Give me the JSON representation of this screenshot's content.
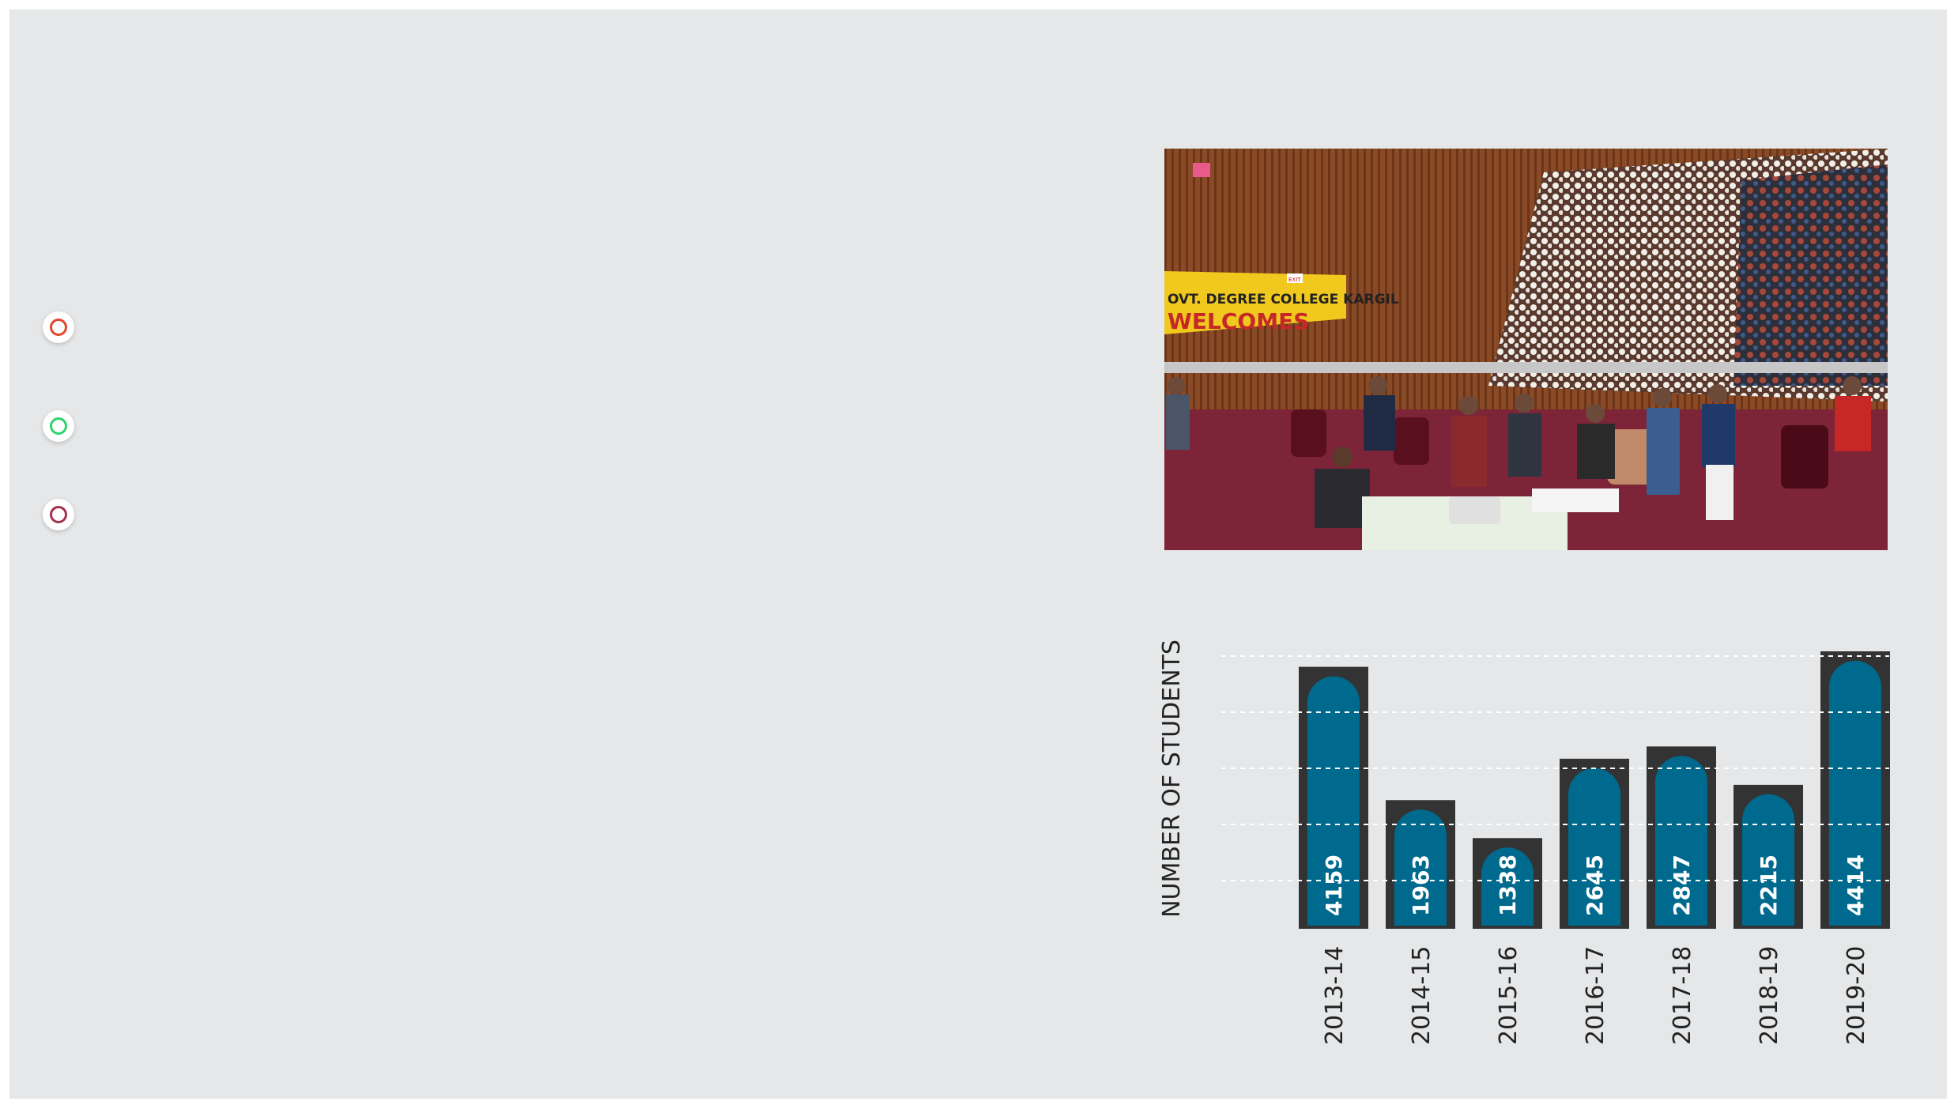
{
  "bullets": [
    {
      "name": "bullet-orange",
      "color": "#e2472d"
    },
    {
      "name": "bullet-green",
      "color": "#2fd36e"
    },
    {
      "name": "bullet-maroon",
      "color": "#a3324f"
    }
  ],
  "photo": {
    "banner_line1": "OVT. DEGREE COLLEGE KARGIL",
    "banner_line2": "WELCOMES",
    "exit_sign": "EXIT"
  },
  "chart_data": {
    "type": "bar",
    "title": "",
    "xlabel": "",
    "ylabel": "NUMBER OF STUDENTS",
    "categories": [
      "2013-14",
      "2014-15",
      "2015-16",
      "2016-17",
      "2017-18",
      "2018-19",
      "2019-20"
    ],
    "values": [
      4159,
      1963,
      1338,
      2645,
      2847,
      2215,
      4414
    ],
    "ylim": [
      0,
      4500
    ],
    "grid": true,
    "data_labels": true,
    "colors": {
      "bar": "#006a8e",
      "bar_frame": "#333333",
      "gridline": "#ffffff",
      "text": "#222222",
      "label": "#ffffff"
    }
  }
}
